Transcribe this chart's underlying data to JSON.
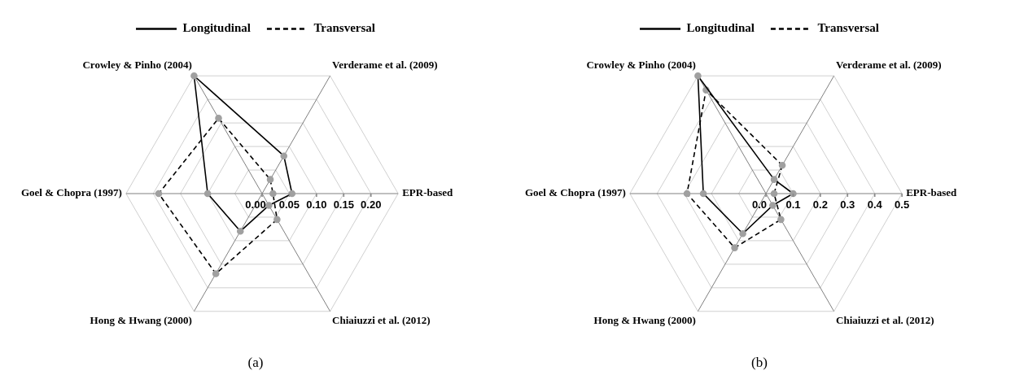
{
  "chart_data": [
    {
      "type": "radar",
      "categories": [
        "Verderame et al. (2009)",
        "EPR-based",
        "Chiaiuzzi et al. (2012)",
        "Hong & Hwang (2000)",
        "Goel & Chopra (1997)",
        "Crowley & Pinho (2004)"
      ],
      "series": [
        {
          "name": "Longitudinal",
          "color": "#000000",
          "line_style": "solid",
          "values": [
            0.08,
            0.055,
            0.025,
            0.08,
            0.1,
            0.25
          ]
        },
        {
          "name": "Transversal",
          "color": "#000000",
          "line_style": "dashed",
          "values": [
            0.03,
            0.02,
            0.055,
            0.17,
            0.19,
            0.16
          ]
        }
      ],
      "ylim": [
        0,
        0.25
      ],
      "yticks": [
        {
          "value": 0,
          "label": "0.00"
        },
        0.05,
        {
          "value": 0.1,
          "label": "0.10"
        },
        0.15,
        {
          "value": 0.2,
          "label": "0.20"
        }
      ],
      "grid": true,
      "legend": "top",
      "marker": "circle",
      "annotations": [
        "(a)"
      ]
    },
    {
      "type": "radar",
      "categories": [
        "Verderame et al. (2009)",
        "EPR-based",
        "Chiaiuzzi et al. (2012)",
        "Hong & Hwang (2000)",
        "Goel & Chopra (1997)",
        "Crowley & Pinho (2004)"
      ],
      "series": [
        {
          "name": "Longitudinal",
          "color": "#000000",
          "line_style": "solid",
          "values": [
            0.06,
            0.1,
            0.05,
            0.17,
            0.23,
            0.5
          ]
        },
        {
          "name": "Transversal",
          "color": "#000000",
          "line_style": "dashed",
          "values": [
            0.12,
            0.03,
            0.11,
            0.23,
            0.29,
            0.44
          ]
        }
      ],
      "ylim": [
        0,
        0.5
      ],
      "yticks": [
        {
          "value": 0,
          "label": "0.0"
        },
        0.1,
        0.2,
        0.3,
        0.4,
        0.5
      ],
      "grid": true,
      "legend": "top",
      "marker": "circle",
      "annotations": [
        "(b)"
      ]
    }
  ]
}
